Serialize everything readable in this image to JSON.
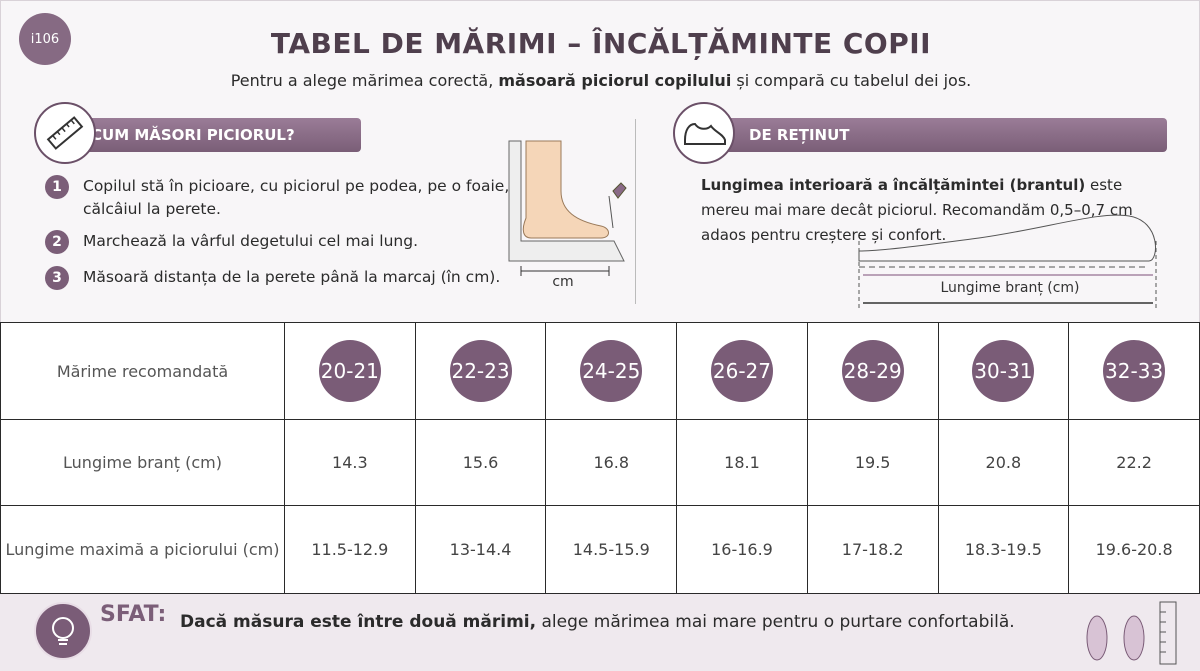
{
  "badge": "i106",
  "header": {
    "title": "TABEL DE MĂRIMI – ÎNCĂLȚĂMINTE COPII",
    "subtitle_start": "Pentru a alege mărimea corectă,",
    "subtitle_bold": "măsoară piciorul copilului",
    "subtitle_end": "și compară cu tabelul dei jos."
  },
  "measure": {
    "heading": "CUM MĂSORI PICIORUL?",
    "steps": [
      {
        "number": "1",
        "text": "Copilul stă în picioare, cu piciorul pe podea, pe o foaie, călcâiul la perete."
      },
      {
        "number": "2",
        "text": "Marchează la vârful degetului cel mai lung."
      },
      {
        "number": "3",
        "text": "Măsoară distanța de la perete până la marcaj (în cm)."
      }
    ],
    "figure_label": "cm"
  },
  "note": {
    "heading": "DE REȚINUT",
    "text_bold": "Lungimea interioară a încălțămintei (brantul)",
    "text": "este mereu mai mare decât piciorul. Recomandăm 0,5–0,7 cm adaos pentru creștere și confort.",
    "figure_label": "Lungime branț (cm)"
  },
  "table": {
    "rows": [
      [
        "Mărime recomandată",
        "20-21",
        "22-23",
        "24-25",
        "26-27",
        "28-29",
        "30-31",
        "32-33"
      ],
      [
        "Lungime branț (cm)",
        14.3,
        15.6,
        16.8,
        18.1,
        19.5,
        20.8,
        22.2
      ],
      [
        "Lungime maximă a piciorului (cm)",
        "11.5-12.9",
        "13-14.4",
        "14.5-15.9",
        "16-16.9",
        "17-18.2",
        "18.3-19.5",
        "19.6-20.8"
      ]
    ]
  },
  "tip": {
    "label": "SFAT:",
    "text_bold": "Dacă măsura este între două mărimi,",
    "text": "alege mărimea mai mare pentru o purtare confortabilă."
  }
}
